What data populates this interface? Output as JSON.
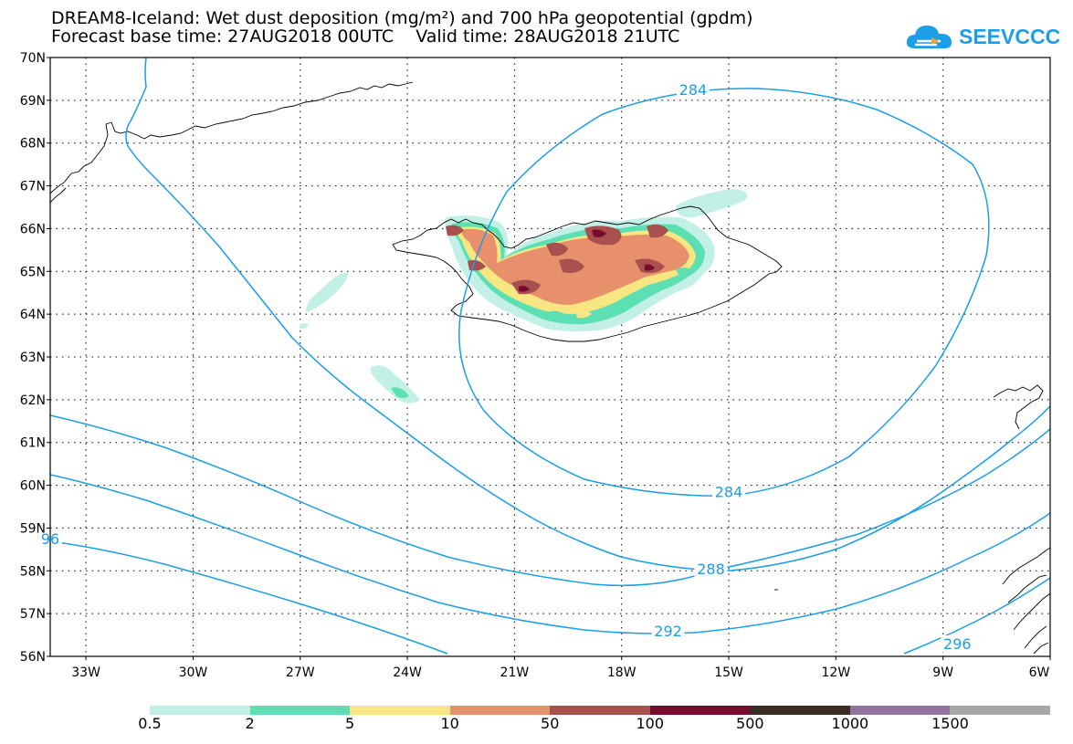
{
  "title": {
    "line1": "DREAM8-Iceland: Wet dust deposition (mg/m²) and 700 hPa geopotential (gpdm)",
    "forecast_base": "Forecast base time: 27AUG2018 00UTC",
    "valid_time": "Valid time: 28AUG2018 21UTC"
  },
  "logo": {
    "text": "SEEVCCC",
    "icon": "cloud-icon",
    "color": "#1e9ee6"
  },
  "map": {
    "lon_range": [
      -34,
      -6
    ],
    "lat_range": [
      56,
      70
    ],
    "lat_labels": [
      "70N",
      "69N",
      "68N",
      "67N",
      "66N",
      "65N",
      "64N",
      "63N",
      "62N",
      "61N",
      "60N",
      "59N",
      "58N",
      "57N",
      "56N"
    ],
    "lon_labels": [
      "33W",
      "30W",
      "27W",
      "24W",
      "21W",
      "18W",
      "15W",
      "12W",
      "9W",
      "6W"
    ],
    "gridlines": "dotted",
    "contour_color": "#1a9ee6",
    "contour_labels": [
      {
        "text": "284",
        "lon": -16.0,
        "lat": 69.25
      },
      {
        "text": "284",
        "lon": -15.0,
        "lat": 59.85
      },
      {
        "text": "288",
        "lon": -15.5,
        "lat": 58.05
      },
      {
        "text": "292",
        "lon": -16.7,
        "lat": 56.6
      },
      {
        "text": "296",
        "lon": -8.6,
        "lat": 56.3
      },
      {
        "text": "96",
        "lon": -34.0,
        "lat": 58.75
      }
    ]
  },
  "legend": {
    "thresholds": [
      "0.5",
      "2",
      "5",
      "10",
      "50",
      "100",
      "500",
      "1000",
      "1500"
    ],
    "colors": [
      "#c2f0e6",
      "#5ce0b3",
      "#f7e681",
      "#e8906b",
      "#a7504e",
      "#7a0a2e",
      "#3a2e24",
      "#93729e",
      "#a8a8a8"
    ]
  }
}
